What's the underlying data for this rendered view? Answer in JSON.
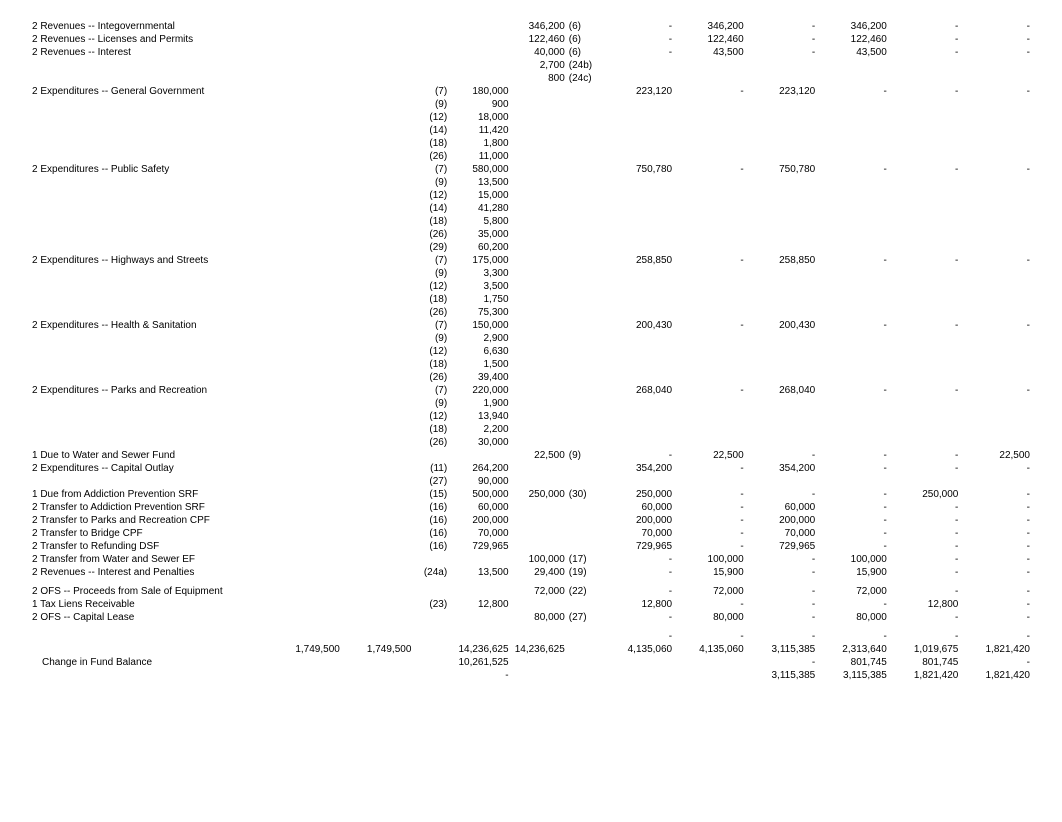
{
  "rows": [
    {
      "label": "2 Revenues -- Integovernmental",
      "subs": [],
      "a": "",
      "b": "",
      "c": "346,200",
      "d": "(6)",
      "e": "-",
      "f": "346,200",
      "g": "-",
      "h": "346,200",
      "i": "-",
      "j": "-"
    },
    {
      "label": "2 Revenues -- Licenses and Permits",
      "subs": [],
      "a": "",
      "b": "",
      "c": "122,460",
      "d": "(6)",
      "e": "-",
      "f": "122,460",
      "g": "-",
      "h": "122,460",
      "i": "-",
      "j": "-"
    },
    {
      "label": "2 Revenues -- Interest",
      "subs": [
        {
          "a": "",
          "b": "",
          "c": "40,000",
          "d": "(6)"
        },
        {
          "a": "",
          "b": "",
          "c": "2,700",
          "d": "(24b)"
        },
        {
          "a": "",
          "b": "",
          "c": "800",
          "d": "(24c)"
        }
      ],
      "e": "-",
      "f": "43,500",
      "g": "-",
      "h": "43,500",
      "i": "-",
      "j": "-"
    },
    {
      "label": "2 Expenditures -- General Government",
      "subs": [
        {
          "a": "(7)",
          "b": "180,000"
        },
        {
          "a": "(9)",
          "b": "900"
        },
        {
          "a": "(12)",
          "b": "18,000"
        },
        {
          "a": "(14)",
          "b": "11,420"
        },
        {
          "a": "(18)",
          "b": "1,800"
        },
        {
          "a": "(26)",
          "b": "11,000"
        }
      ],
      "c": "",
      "d": "",
      "e": "223,120",
      "f": "-",
      "g": "223,120",
      "h": "-",
      "i": "-",
      "j": "-"
    },
    {
      "label": "2 Expenditures -- Public Safety",
      "subs": [
        {
          "a": "(7)",
          "b": "580,000"
        },
        {
          "a": "(9)",
          "b": "13,500"
        },
        {
          "a": "(12)",
          "b": "15,000"
        },
        {
          "a": "(14)",
          "b": "41,280"
        },
        {
          "a": "(18)",
          "b": "5,800"
        },
        {
          "a": "(26)",
          "b": "35,000"
        },
        {
          "a": "(29)",
          "b": "60,200"
        }
      ],
      "c": "",
      "d": "",
      "e": "750,780",
      "f": "-",
      "g": "750,780",
      "h": "-",
      "i": "-",
      "j": "-"
    },
    {
      "label": "2 Expenditures -- Highways and Streets",
      "subs": [
        {
          "a": "(7)",
          "b": "175,000"
        },
        {
          "a": "(9)",
          "b": "3,300"
        },
        {
          "a": "(12)",
          "b": "3,500"
        },
        {
          "a": "(18)",
          "b": "1,750"
        },
        {
          "a": "(26)",
          "b": "75,300"
        }
      ],
      "c": "",
      "d": "",
      "e": "258,850",
      "f": "-",
      "g": "258,850",
      "h": "-",
      "i": "-",
      "j": "-"
    },
    {
      "label": "2 Expenditures -- Health & Sanitation",
      "subs": [
        {
          "a": "(7)",
          "b": "150,000"
        },
        {
          "a": "(9)",
          "b": "2,900"
        },
        {
          "a": "(12)",
          "b": "6,630"
        },
        {
          "a": "(18)",
          "b": "1,500"
        },
        {
          "a": "(26)",
          "b": "39,400"
        }
      ],
      "c": "",
      "d": "",
      "e": "200,430",
      "f": "-",
      "g": "200,430",
      "h": "-",
      "i": "-",
      "j": "-"
    },
    {
      "label": "2 Expenditures -- Parks and Recreation",
      "subs": [
        {
          "a": "(7)",
          "b": "220,000"
        },
        {
          "a": "(9)",
          "b": "1,900"
        },
        {
          "a": "(12)",
          "b": "13,940"
        },
        {
          "a": "(18)",
          "b": "2,200"
        },
        {
          "a": "(26)",
          "b": "30,000"
        }
      ],
      "c": "",
      "d": "",
      "e": "268,040",
      "f": "-",
      "g": "268,040",
      "h": "-",
      "i": "-",
      "j": "-"
    },
    {
      "label": "1 Due to Water and Sewer Fund",
      "subs": [],
      "a": "",
      "b": "",
      "c": "22,500",
      "d": "(9)",
      "e": "-",
      "f": "22,500",
      "g": "-",
      "h": "-",
      "i": "-",
      "j": "22,500"
    },
    {
      "label": "2 Expenditures -- Capital Outlay",
      "subs": [
        {
          "a": "(11)",
          "b": "264,200"
        },
        {
          "a": "(27)",
          "b": "90,000"
        }
      ],
      "c": "",
      "d": "",
      "e": "354,200",
      "f": "-",
      "g": "354,200",
      "h": "-",
      "i": "-",
      "j": "-"
    },
    {
      "label": "1 Due from Addiction Prevention SRF",
      "subs": [],
      "a": "(15)",
      "b": "500,000",
      "c": "250,000",
      "d": "(30)",
      "e": "250,000",
      "f": "-",
      "g": "-",
      "h": "-",
      "i": "250,000",
      "j": "-"
    },
    {
      "label": "2 Transfer to Addiction Prevention SRF",
      "subs": [],
      "a": "(16)",
      "b": "60,000",
      "c": "",
      "d": "",
      "e": "60,000",
      "f": "-",
      "g": "60,000",
      "h": "-",
      "i": "-",
      "j": "-"
    },
    {
      "label": "2 Transfer to Parks and Recreation CPF",
      "subs": [],
      "a": "(16)",
      "b": "200,000",
      "c": "",
      "d": "",
      "e": "200,000",
      "f": "-",
      "g": "200,000",
      "h": "-",
      "i": "-",
      "j": "-"
    },
    {
      "label": "2 Transfer to Bridge CPF",
      "subs": [],
      "a": "(16)",
      "b": "70,000",
      "c": "",
      "d": "",
      "e": "70,000",
      "f": "-",
      "g": "70,000",
      "h": "-",
      "i": "-",
      "j": "-"
    },
    {
      "label": "2 Transfer to Refunding DSF",
      "subs": [],
      "a": "(16)",
      "b": "729,965",
      "c": "",
      "d": "",
      "e": "729,965",
      "f": "-",
      "g": "729,965",
      "h": "-",
      "i": "-",
      "j": "-"
    },
    {
      "label": "2 Transfer from Water and Sewer EF",
      "subs": [],
      "a": "",
      "b": "",
      "c": "100,000",
      "d": "(17)",
      "e": "-",
      "f": "100,000",
      "g": "-",
      "h": "100,000",
      "i": "-",
      "j": "-"
    },
    {
      "label": "2 Revenues -- Interest and Penalties",
      "subs": [],
      "a": "(24a)",
      "b": "13,500",
      "c": "29,400",
      "d": "(19)",
      "e": "-",
      "f": "15,900",
      "g": "-",
      "h": "15,900",
      "i": "-",
      "j": "-"
    },
    {
      "spacer": true
    },
    {
      "label": "2 OFS -- Proceeds from Sale of Equipment",
      "subs": [],
      "a": "",
      "b": "",
      "c": "72,000",
      "d": "(22)",
      "e": "-",
      "f": "72,000",
      "g": "-",
      "h": "72,000",
      "i": "-",
      "j": "-"
    },
    {
      "label": "1 Tax Liens Receivable",
      "subs": [],
      "a": "(23)",
      "b": "12,800",
      "c": "",
      "d": "",
      "e": "12,800",
      "f": "-",
      "g": "-",
      "h": "-",
      "i": "12,800",
      "j": "-"
    },
    {
      "label": "2 OFS -- Capital Lease",
      "subs": [],
      "a": "",
      "b": "",
      "c": "80,000",
      "d": "(27)",
      "e": "-",
      "f": "80,000",
      "g": "-",
      "h": "80,000",
      "i": "-",
      "j": "-"
    },
    {
      "spacer": true
    },
    {
      "label": "",
      "subs": [],
      "a": "",
      "b": "",
      "c": "",
      "d": "",
      "e": "-",
      "f": "-",
      "g": "-",
      "h": "-",
      "i": "-",
      "j": "-"
    }
  ],
  "totals": [
    {
      "label": "",
      "t1": "1,749,500",
      "t2": "1,749,500",
      "b": "14,236,625",
      "c": "14,236,625",
      "e": "4,135,060",
      "f": "4,135,060",
      "g": "3,115,385",
      "h": "2,313,640",
      "i": "1,019,675",
      "j": "1,821,420"
    },
    {
      "label": "Change in Fund Balance",
      "t1": "",
      "t2": "",
      "b": "10,261,525",
      "c": "",
      "e": "",
      "f": "",
      "g": "-",
      "h": "801,745",
      "i": "801,745",
      "j": "-"
    },
    {
      "label": "",
      "t1": "",
      "t2": "",
      "b": "-",
      "c": "",
      "e": "",
      "f": "",
      "g": "3,115,385",
      "h": "3,115,385",
      "i": "1,821,420",
      "j": "1,821,420"
    }
  ]
}
